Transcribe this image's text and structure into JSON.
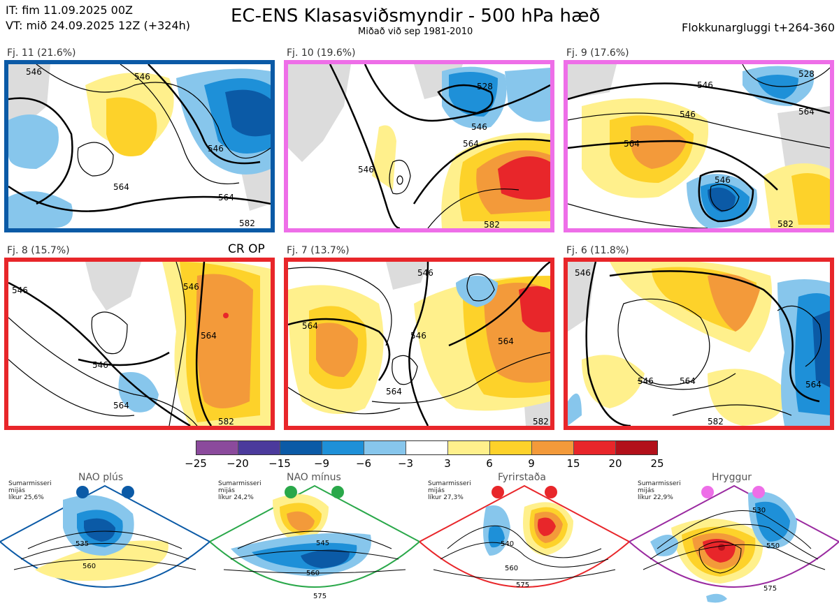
{
  "header": {
    "issue_time": "IT: fim 11.09.2025 00Z",
    "valid_time": "VT: mið 24.09.2025 12Z  (+324h)",
    "title": "EC-ENS Klasasviðsmyndir - 500 hPa hæð",
    "subtitle": "Miðað við sep 1981-2010",
    "window": "Flokkunargluggi t+264-360"
  },
  "operational_label": "CR OP",
  "clusters": [
    {
      "label": "Fj. 11 (21.6%)",
      "frame_color": "#0b5aa6"
    },
    {
      "label": "Fj. 10 (19.6%)",
      "frame_color": "#ee6ee8"
    },
    {
      "label": "Fj. 9 (17.6%)",
      "frame_color": "#ee6ee8"
    },
    {
      "label": "Fj. 8 (15.7%)",
      "frame_color": "#e8262a"
    },
    {
      "label": "Fj. 7 (13.7%)",
      "frame_color": "#e8262a"
    },
    {
      "label": "Fj. 6 (11.8%)",
      "frame_color": "#e8262a"
    }
  ],
  "contour_labels": {
    "c11": [
      "546",
      "546",
      "564",
      "564",
      "546",
      "582"
    ],
    "c10": [
      "528",
      "546",
      "546",
      "564",
      "582"
    ],
    "c9": [
      "528",
      "546",
      "546",
      "564",
      "546",
      "564",
      "582"
    ],
    "c8": [
      "546",
      "546",
      "546",
      "564",
      "564",
      "582"
    ],
    "c7": [
      "564",
      "546",
      "564",
      "564",
      "546",
      "582"
    ],
    "c6": [
      "546",
      "546",
      "564",
      "564",
      "582"
    ]
  },
  "colorbar": {
    "ticks": [
      "−25",
      "−20",
      "−15",
      "−9",
      "−6",
      "−3",
      "3",
      "6",
      "9",
      "15",
      "20",
      "25"
    ],
    "colors": [
      "#8b4a9c",
      "#4b3a9c",
      "#0b5aa6",
      "#1e90d8",
      "#87c6ec",
      "#ffffff",
      "#fff08c",
      "#fdd22a",
      "#f39a3a",
      "#e8262a",
      "#b2101a"
    ]
  },
  "regimes": [
    {
      "name": "NAO plús",
      "info": [
        "Sumarmisseri",
        "mijás",
        "líkur 25,6%"
      ],
      "color": "#0b5aa6",
      "contours": [
        "535",
        "560"
      ]
    },
    {
      "name": "NAO mínus",
      "info": [
        "Sumarmisseri",
        "mijás",
        "líkur 24,2%"
      ],
      "color": "#2aa84a",
      "contours": [
        "545",
        "560",
        "575"
      ]
    },
    {
      "name": "Fyrirstaða",
      "info": [
        "Sumarmisseri",
        "mijás",
        "líkur 27,3%"
      ],
      "color": "#e8262a",
      "contours": [
        "540",
        "560",
        "575"
      ]
    },
    {
      "name": "Hryggur",
      "info": [
        "Sumarmisseri",
        "mijás",
        "líkur 22,9%"
      ],
      "color": "#9a2aa0",
      "contours": [
        "530",
        "550",
        "575"
      ]
    }
  ]
}
